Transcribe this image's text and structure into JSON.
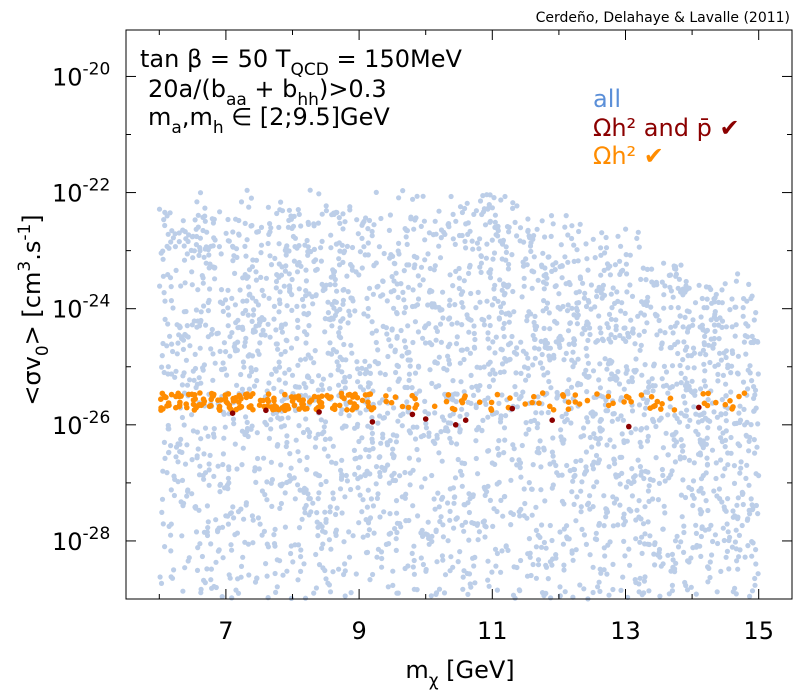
{
  "chart_data": {
    "type": "scatter",
    "title": "",
    "credit": "Cerdeño, Delahaye & Lavalle (2011)",
    "xlabel": {
      "base": "m",
      "sub": "χ",
      "rest": " [GeV]"
    },
    "ylabel": {
      "pre": "<σv",
      "sub": "0",
      "mid": "> [cm",
      "sup1": "3",
      "mid2": ".s",
      "sup2": "-1",
      "end": "]"
    },
    "xlim": [
      5.5,
      15.5
    ],
    "ylim_log10": [
      -29.0,
      -19.2
    ],
    "x_ticks": [
      "7",
      "9",
      "11",
      "13",
      "15"
    ],
    "x_tick_values": [
      7,
      9,
      11,
      13,
      15
    ],
    "x_minor_tick_values": [
      6,
      8,
      10,
      12,
      14
    ],
    "y_ticks": [
      {
        "exp": -20,
        "base": "10",
        "sup": "-20"
      },
      {
        "exp": -22,
        "base": "10",
        "sup": "-22"
      },
      {
        "exp": -24,
        "base": "10",
        "sup": "-24"
      },
      {
        "exp": -26,
        "base": "10",
        "sup": "-26"
      },
      {
        "exp": -28,
        "base": "10",
        "sup": "-28"
      }
    ],
    "y_minor_tick_values": [
      -21,
      -23,
      -25,
      -27
    ],
    "annotations": {
      "line1": {
        "a": "tan β = 50    T",
        "a_sub": "QCD",
        "b": " = 150MeV"
      },
      "line2": {
        "a": "20a/(b",
        "a_sub": "aa",
        "b": " + b",
        "b_sub": "hh",
        "c": ")>0.3"
      },
      "line3": {
        "a": "m",
        "a_sub": "a",
        "b": ",m",
        "b_sub": "h",
        "c": " ∈ [2;9.5]GeV"
      }
    },
    "series": [
      {
        "name": "all",
        "color": "#bccee8",
        "x_range": [
          6.0,
          15.0
        ],
        "logy_range": [
          -29.0,
          -22.0
        ],
        "sample_count": 3000
      },
      {
        "name": "Ωh² and p̄ ✔",
        "color": "#8b0000",
        "points": [
          [
            7.1,
            -25.8
          ],
          [
            7.6,
            -25.75
          ],
          [
            8.4,
            -25.78
          ],
          [
            9.2,
            -25.95
          ],
          [
            9.8,
            -25.82
          ],
          [
            10.0,
            -25.9
          ],
          [
            10.45,
            -26.0
          ],
          [
            10.6,
            -25.92
          ],
          [
            11.3,
            -25.72
          ],
          [
            11.9,
            -25.92
          ],
          [
            13.05,
            -26.03
          ],
          [
            14.1,
            -25.7
          ]
        ]
      },
      {
        "name": "Ωh² ✔",
        "color": "#ff8c00",
        "x_range": [
          6.0,
          14.8
        ],
        "band_center_logy": -25.6,
        "band_halfwidth_logy": 0.15,
        "sample_count": 240
      }
    ],
    "legend": {
      "position": "top-right",
      "entries": [
        {
          "text": "all",
          "color": "#5b8fd8"
        },
        {
          "text": "Ωh² and p̄ ✔",
          "color": "#8b0000"
        },
        {
          "text": "Ωh² ✔",
          "color": "#ff8c00"
        }
      ]
    }
  }
}
